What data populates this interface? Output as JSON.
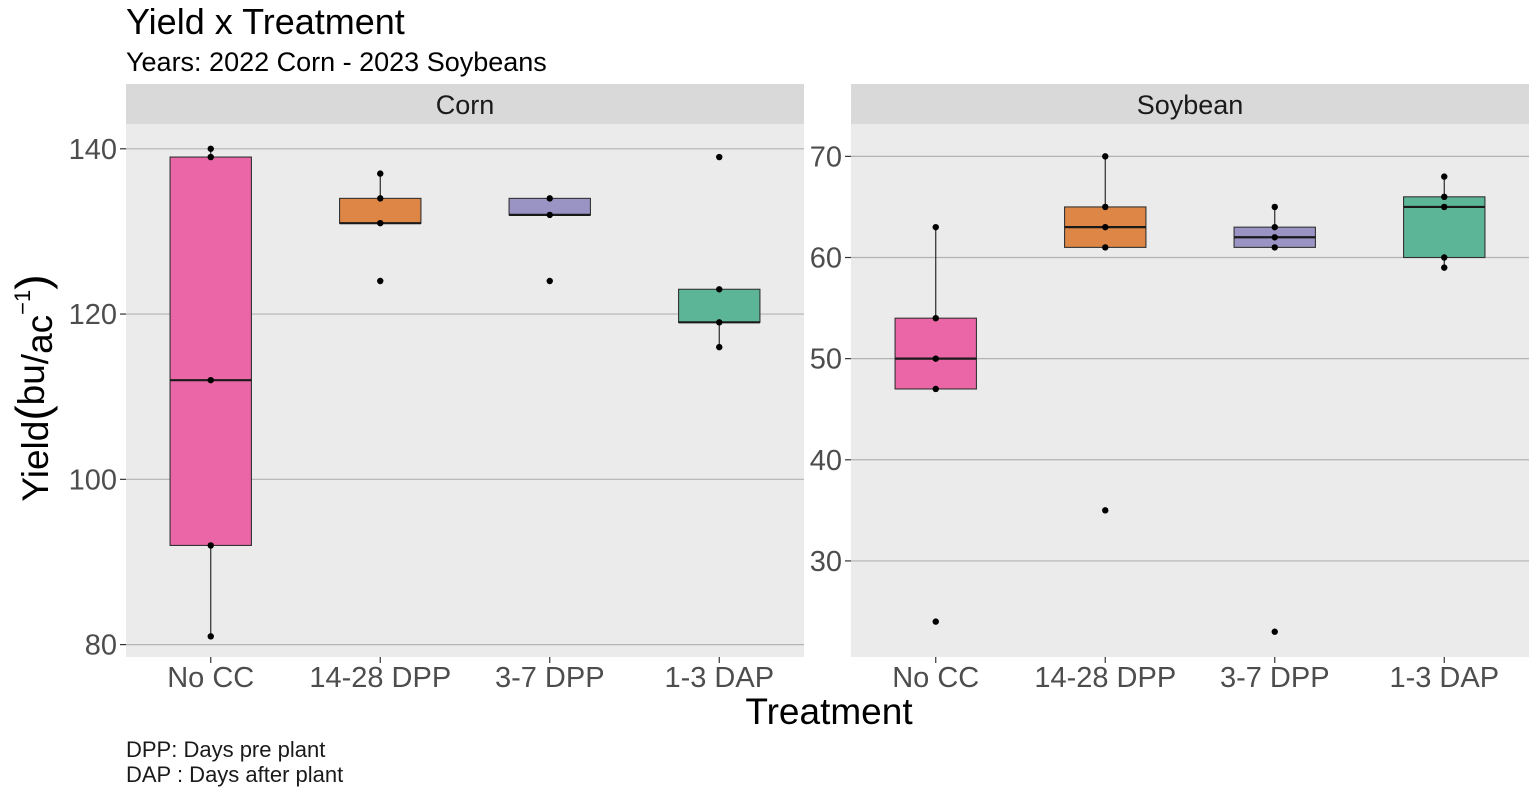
{
  "title": "Yield x Treatment",
  "subtitle": "Years: 2022 Corn - 2023 Soybeans",
  "xlabel": "Treatment",
  "ylabel": {
    "base": "Yield",
    "open_paren": "(",
    "unit_top": "bu",
    "slash": "/",
    "unit_bottom": "ac",
    "exponent": "−1",
    "close_paren": ")"
  },
  "captions": [
    "DPP: Days pre plant",
    "DAP : Days after plant"
  ],
  "chart_data": {
    "type": "boxplot",
    "categories": [
      "No CC",
      "14-28 DPP",
      "3-7 DPP",
      "1-3 DAP"
    ],
    "colors": {
      "No CC": "#EA66A6",
      "14-28 DPP": "#DE8645",
      "3-7 DPP": "#9A94C4",
      "1-3 DAP": "#5BB596"
    },
    "panel_background": "#EBEBEB",
    "strip_background": "#D9D9D9",
    "grid": "major-y",
    "legend": "none",
    "facets": [
      {
        "label": "Corn",
        "ylim": [
          78.5,
          143
        ],
        "yticks": [
          80,
          100,
          120,
          140
        ],
        "boxes": [
          {
            "category": "No CC",
            "lower_whisker": 81,
            "q1": 92,
            "median": 112,
            "q3": 139,
            "upper_whisker": 140,
            "points": [
              81,
              92,
              112,
              139,
              140
            ]
          },
          {
            "category": "14-28 DPP",
            "lower_whisker": 131,
            "q1": 131,
            "median": 131,
            "q3": 134,
            "upper_whisker": 137,
            "points": [
              124,
              131,
              134,
              137
            ]
          },
          {
            "category": "3-7 DPP",
            "lower_whisker": 132,
            "q1": 132,
            "median": 132,
            "q3": 134,
            "upper_whisker": 134,
            "points": [
              124,
              132,
              134
            ]
          },
          {
            "category": "1-3 DAP",
            "lower_whisker": 116,
            "q1": 119,
            "median": 119,
            "q3": 123,
            "upper_whisker": 123,
            "points": [
              116,
              119,
              123,
              139
            ]
          }
        ]
      },
      {
        "label": "Soybean",
        "ylim": [
          20.5,
          73.2
        ],
        "yticks": [
          30,
          40,
          50,
          60,
          70
        ],
        "boxes": [
          {
            "category": "No CC",
            "lower_whisker": 47,
            "q1": 47,
            "median": 50,
            "q3": 54,
            "upper_whisker": 63,
            "points": [
              24,
              47,
              50,
              54,
              63
            ]
          },
          {
            "category": "14-28 DPP",
            "lower_whisker": 61,
            "q1": 61,
            "median": 63,
            "q3": 65,
            "upper_whisker": 70,
            "points": [
              35,
              61,
              63,
              65,
              70
            ]
          },
          {
            "category": "3-7 DPP",
            "lower_whisker": 61,
            "q1": 61,
            "median": 62,
            "q3": 63,
            "upper_whisker": 65,
            "points": [
              23,
              61,
              62,
              63,
              65
            ]
          },
          {
            "category": "1-3 DAP",
            "lower_whisker": 59,
            "q1": 60,
            "median": 65,
            "q3": 66,
            "upper_whisker": 68,
            "points": [
              59,
              60,
              65,
              66,
              68
            ]
          }
        ]
      }
    ]
  }
}
